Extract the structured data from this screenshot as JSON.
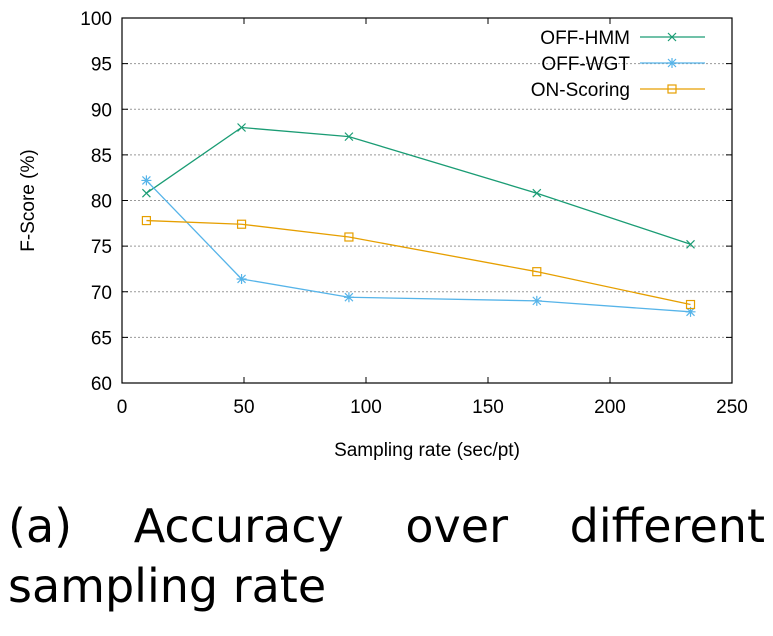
{
  "chart_data": {
    "type": "line",
    "xlabel": "Sampling rate (sec/pt)",
    "ylabel": "F-Score (%)",
    "xlim": [
      0,
      250
    ],
    "ylim": [
      60,
      100
    ],
    "xticks": [
      0,
      50,
      100,
      150,
      200,
      250
    ],
    "yticks": [
      60,
      65,
      70,
      75,
      80,
      85,
      90,
      95,
      100
    ],
    "grid": "horizontal dotted",
    "legend_position": "top-right",
    "x": [
      10,
      49,
      93,
      170,
      233
    ],
    "series": [
      {
        "name": "OFF-HMM",
        "values": [
          80.8,
          88.0,
          87.0,
          80.8,
          75.2
        ],
        "color": "#1a9c74",
        "marker": "x"
      },
      {
        "name": "OFF-WGT",
        "values": [
          82.2,
          71.4,
          69.4,
          69.0,
          67.8
        ],
        "color": "#56b4e9",
        "marker": "asterisk"
      },
      {
        "name": "ON-Scoring",
        "values": [
          77.8,
          77.4,
          76.0,
          72.2,
          68.6
        ],
        "color": "#e69f00",
        "marker": "square"
      }
    ]
  },
  "caption": "(a) Accuracy over different sampling rate"
}
